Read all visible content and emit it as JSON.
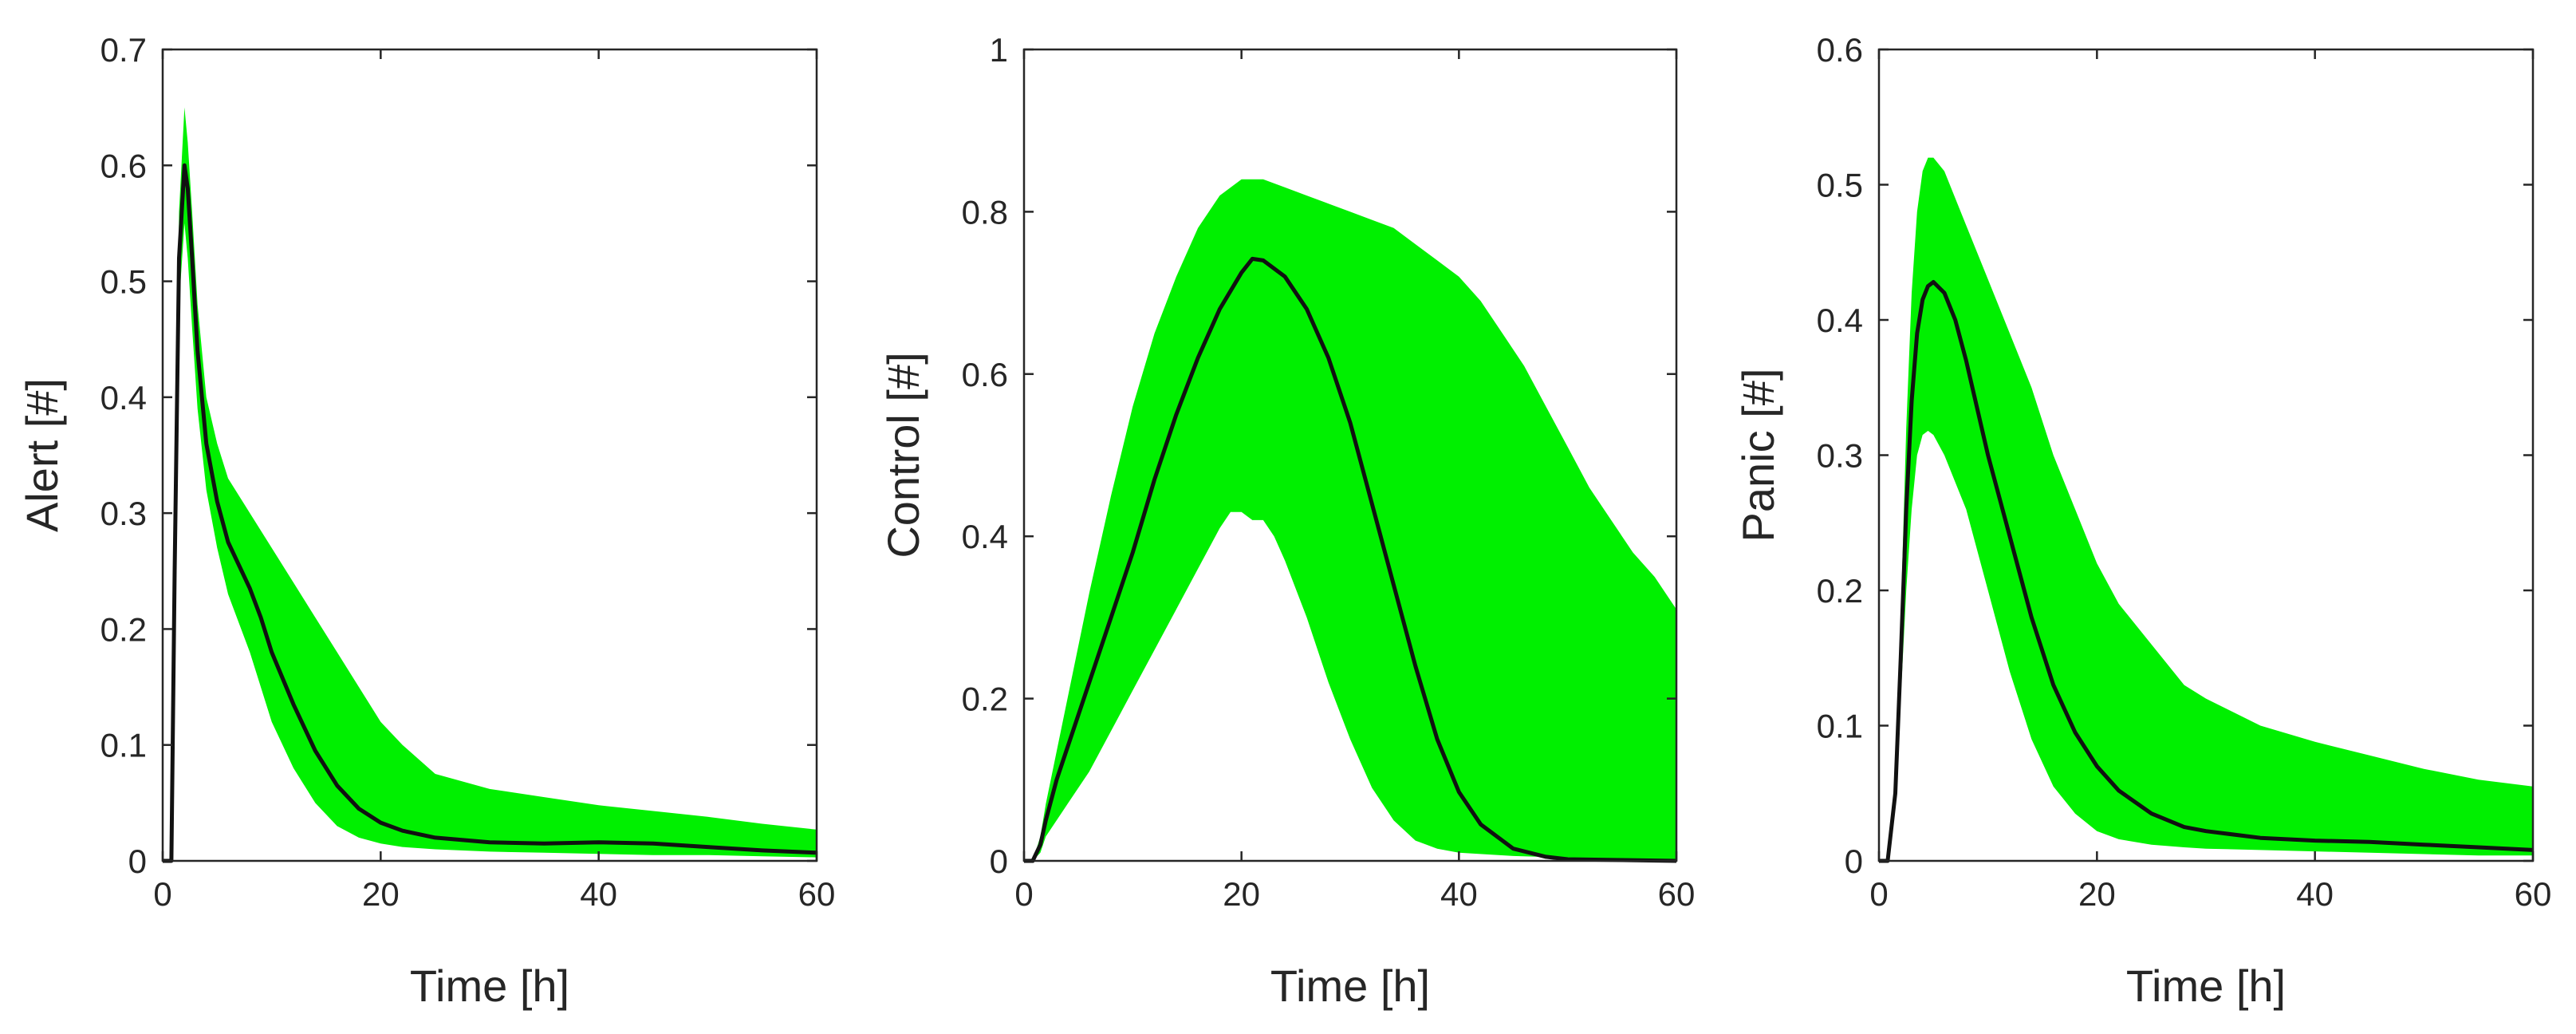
{
  "chart_data": [
    {
      "type": "area",
      "xlabel": "Time [h]",
      "ylabel": "Alert [#]",
      "xlim": [
        0,
        60
      ],
      "ylim": [
        0,
        0.7
      ],
      "xticks": [
        0,
        20,
        40,
        60
      ],
      "yticks": [
        0,
        0.1,
        0.2,
        0.3,
        0.4,
        0.5,
        0.6,
        0.7
      ],
      "xtick_labels": [
        "0",
        "20",
        "40",
        "60"
      ],
      "ytick_labels": [
        "0",
        "0.1",
        "0.2",
        "0.3",
        "0.4",
        "0.5",
        "0.6",
        "0.7"
      ],
      "band_color": "#00f000",
      "line_color": "#111111",
      "series": [
        {
          "name": "mean",
          "x": [
            0,
            0.8,
            1.1,
            1.5,
            2.0,
            2.3,
            2.7,
            3.2,
            4,
            5,
            6,
            8,
            9,
            10,
            12,
            14,
            16,
            18,
            20,
            22,
            25,
            30,
            35,
            40,
            45,
            50,
            55,
            60
          ],
          "y": [
            0,
            0,
            0.25,
            0.52,
            0.6,
            0.58,
            0.52,
            0.44,
            0.36,
            0.31,
            0.275,
            0.235,
            0.21,
            0.18,
            0.135,
            0.095,
            0.065,
            0.045,
            0.033,
            0.026,
            0.02,
            0.016,
            0.015,
            0.016,
            0.015,
            0.012,
            0.009,
            0.007
          ]
        },
        {
          "name": "upper",
          "x": [
            0,
            0.8,
            1.1,
            1.5,
            2.0,
            2.3,
            2.7,
            3.2,
            4,
            5,
            6,
            8,
            10,
            12,
            14,
            16,
            18,
            20,
            22,
            25,
            30,
            35,
            40,
            45,
            50,
            55,
            60
          ],
          "y": [
            0,
            0,
            0.28,
            0.56,
            0.65,
            0.62,
            0.56,
            0.48,
            0.4,
            0.36,
            0.33,
            0.3,
            0.27,
            0.24,
            0.21,
            0.18,
            0.15,
            0.12,
            0.1,
            0.075,
            0.062,
            0.055,
            0.048,
            0.043,
            0.038,
            0.032,
            0.027
          ]
        },
        {
          "name": "lower",
          "x": [
            0,
            0.8,
            1.1,
            1.5,
            2.0,
            2.3,
            2.7,
            3.2,
            4,
            5,
            6,
            8,
            10,
            12,
            14,
            16,
            18,
            20,
            22,
            25,
            30,
            35,
            40,
            45,
            50,
            55,
            60
          ],
          "y": [
            0,
            0,
            0.22,
            0.48,
            0.55,
            0.52,
            0.46,
            0.39,
            0.32,
            0.27,
            0.23,
            0.18,
            0.12,
            0.08,
            0.05,
            0.03,
            0.02,
            0.015,
            0.012,
            0.01,
            0.008,
            0.007,
            0.006,
            0.005,
            0.005,
            0.004,
            0.003
          ]
        }
      ]
    },
    {
      "type": "area",
      "xlabel": "Time [h]",
      "ylabel": "Control [#]",
      "xlim": [
        0,
        60
      ],
      "ylim": [
        0,
        1
      ],
      "xticks": [
        0,
        20,
        40,
        60
      ],
      "yticks": [
        0,
        0.2,
        0.4,
        0.6,
        0.8,
        1
      ],
      "xtick_labels": [
        "0",
        "20",
        "40",
        "60"
      ],
      "ytick_labels": [
        "0",
        "0.2",
        "0.4",
        "0.6",
        "0.8",
        "1"
      ],
      "band_color": "#00f000",
      "line_color": "#111111",
      "series": [
        {
          "name": "mean",
          "x": [
            0,
            0.8,
            1.5,
            2,
            3,
            5,
            8,
            10,
            12,
            14,
            16,
            18,
            20,
            21,
            22,
            24,
            26,
            28,
            30,
            32,
            34,
            36,
            38,
            40,
            42,
            45,
            48,
            50,
            55,
            60
          ],
          "y": [
            0,
            0,
            0.02,
            0.05,
            0.1,
            0.18,
            0.3,
            0.38,
            0.47,
            0.55,
            0.62,
            0.68,
            0.725,
            0.742,
            0.74,
            0.72,
            0.68,
            0.62,
            0.54,
            0.44,
            0.34,
            0.24,
            0.15,
            0.085,
            0.045,
            0.015,
            0.005,
            0.002,
            0.001,
            0
          ]
        },
        {
          "name": "upper",
          "x": [
            0,
            0.8,
            1.5,
            2,
            4,
            6,
            8,
            10,
            12,
            14,
            16,
            18,
            20,
            22,
            24,
            26,
            28,
            30,
            32,
            34,
            36,
            38,
            40,
            42,
            44,
            46,
            48,
            50,
            52,
            54,
            56,
            58,
            60
          ],
          "y": [
            0,
            0,
            0.03,
            0.07,
            0.2,
            0.33,
            0.45,
            0.56,
            0.65,
            0.72,
            0.78,
            0.82,
            0.84,
            0.84,
            0.83,
            0.82,
            0.81,
            0.8,
            0.79,
            0.78,
            0.76,
            0.74,
            0.72,
            0.69,
            0.65,
            0.61,
            0.56,
            0.51,
            0.46,
            0.42,
            0.38,
            0.35,
            0.31
          ]
        },
        {
          "name": "lower",
          "x": [
            0,
            0.8,
            1.5,
            2,
            4,
            6,
            8,
            10,
            12,
            14,
            16,
            18,
            19,
            20,
            21,
            22,
            23,
            24,
            26,
            28,
            30,
            32,
            34,
            36,
            38,
            40,
            45,
            50,
            55,
            60
          ],
          "y": [
            0,
            0,
            0.01,
            0.03,
            0.07,
            0.11,
            0.16,
            0.21,
            0.26,
            0.31,
            0.36,
            0.41,
            0.43,
            0.43,
            0.42,
            0.42,
            0.4,
            0.37,
            0.3,
            0.22,
            0.15,
            0.09,
            0.05,
            0.025,
            0.015,
            0.01,
            0.006,
            0.004,
            0.002,
            0.001
          ]
        }
      ]
    },
    {
      "type": "area",
      "xlabel": "Time [h]",
      "ylabel": "Panic [#]",
      "xlim": [
        0,
        60
      ],
      "ylim": [
        0,
        0.6
      ],
      "xticks": [
        0,
        20,
        40,
        60
      ],
      "yticks": [
        0,
        0.1,
        0.2,
        0.3,
        0.4,
        0.5,
        0.6
      ],
      "xtick_labels": [
        "0",
        "20",
        "40",
        "60"
      ],
      "ytick_labels": [
        "0",
        "0.1",
        "0.2",
        "0.3",
        "0.4",
        "0.5",
        "0.6"
      ],
      "band_color": "#00f000",
      "line_color": "#111111",
      "series": [
        {
          "name": "mean",
          "x": [
            0,
            0.8,
            1.5,
            2,
            2.5,
            3,
            3.5,
            4,
            4.5,
            5,
            6,
            7,
            8,
            10,
            12,
            14,
            16,
            18,
            20,
            22,
            25,
            28,
            30,
            35,
            40,
            45,
            50,
            55,
            60
          ],
          "y": [
            0,
            0,
            0.05,
            0.15,
            0.26,
            0.34,
            0.39,
            0.415,
            0.425,
            0.428,
            0.42,
            0.4,
            0.37,
            0.3,
            0.24,
            0.18,
            0.13,
            0.095,
            0.07,
            0.052,
            0.035,
            0.025,
            0.022,
            0.017,
            0.015,
            0.014,
            0.012,
            0.01,
            0.008
          ]
        },
        {
          "name": "upper",
          "x": [
            0,
            0.8,
            1.5,
            2,
            2.5,
            3,
            3.5,
            4,
            4.5,
            5,
            6,
            8,
            10,
            12,
            14,
            16,
            18,
            20,
            22,
            25,
            28,
            30,
            35,
            40,
            45,
            50,
            55,
            60
          ],
          "y": [
            0,
            0,
            0.06,
            0.18,
            0.32,
            0.42,
            0.48,
            0.51,
            0.52,
            0.52,
            0.51,
            0.47,
            0.43,
            0.39,
            0.35,
            0.3,
            0.26,
            0.22,
            0.19,
            0.16,
            0.13,
            0.12,
            0.1,
            0.088,
            0.078,
            0.068,
            0.06,
            0.055
          ]
        },
        {
          "name": "lower",
          "x": [
            0,
            0.8,
            1.5,
            2,
            2.5,
            3,
            3.5,
            4,
            4.5,
            5,
            6,
            8,
            10,
            12,
            14,
            16,
            18,
            20,
            22,
            25,
            28,
            30,
            35,
            40,
            45,
            50,
            55,
            60
          ],
          "y": [
            0,
            0,
            0.04,
            0.12,
            0.2,
            0.26,
            0.3,
            0.315,
            0.318,
            0.315,
            0.3,
            0.26,
            0.2,
            0.14,
            0.09,
            0.055,
            0.035,
            0.022,
            0.016,
            0.012,
            0.01,
            0.009,
            0.008,
            0.007,
            0.006,
            0.005,
            0.004,
            0.004
          ]
        }
      ]
    }
  ]
}
